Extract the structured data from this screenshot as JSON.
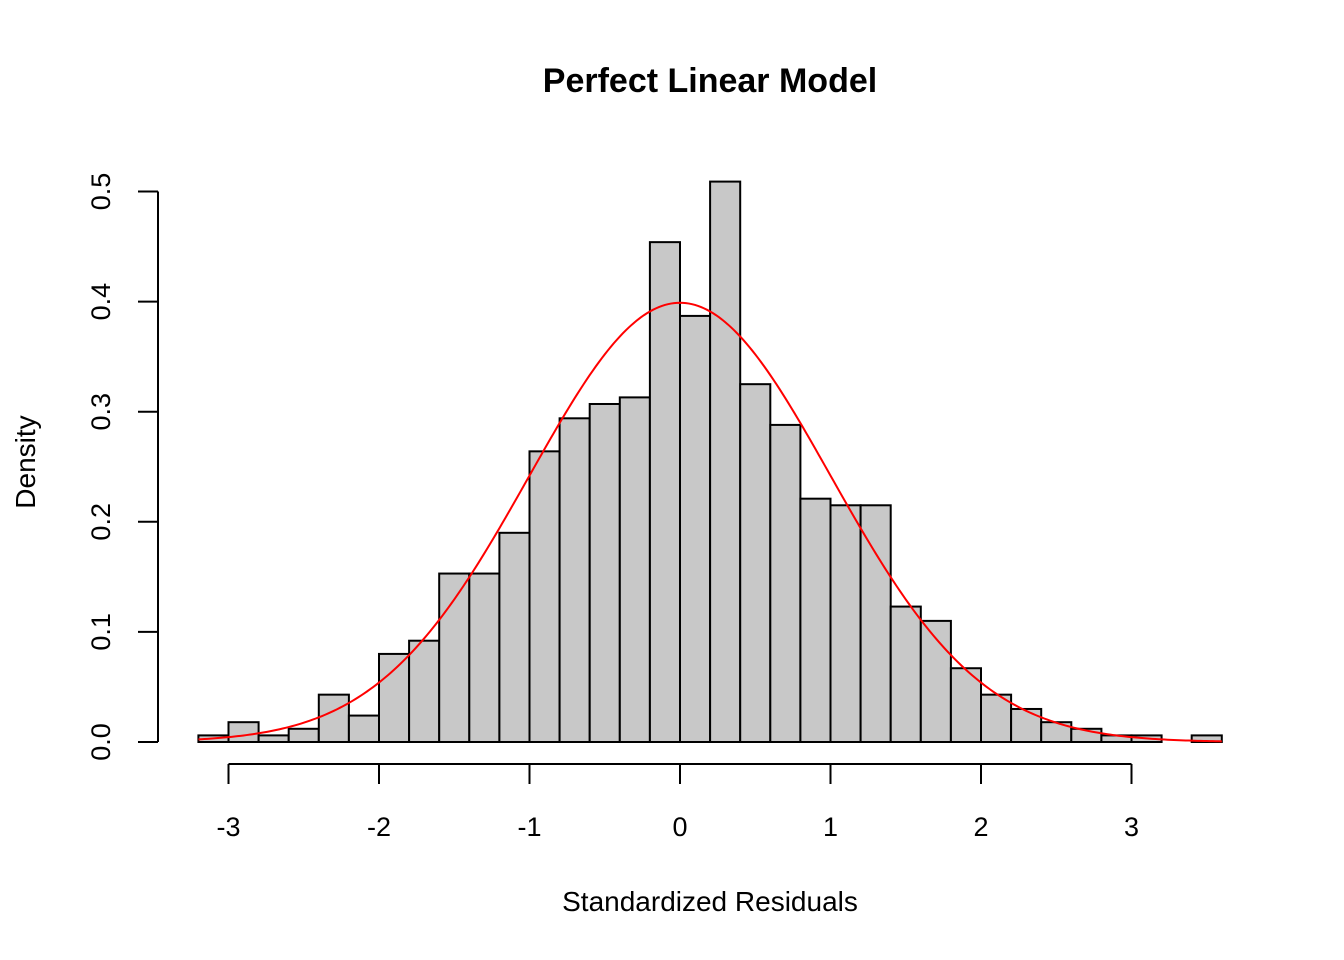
{
  "chart_data": {
    "type": "bar",
    "title": "Perfect Linear Model",
    "xlabel": "Standardized Residuals",
    "ylabel": "Density",
    "xlim": [
      -3.2,
      3.6
    ],
    "ylim": [
      0,
      0.5
    ],
    "bin_width": 0.2,
    "bin_start": -3.2,
    "values": [
      0.006,
      0.018,
      0.006,
      0.012,
      0.043,
      0.024,
      0.08,
      0.092,
      0.153,
      0.153,
      0.19,
      0.264,
      0.294,
      0.307,
      0.313,
      0.454,
      0.387,
      0.509,
      0.325,
      0.288,
      0.221,
      0.215,
      0.215,
      0.123,
      0.11,
      0.067,
      0.043,
      0.03,
      0.018,
      0.012,
      0.006,
      0.006,
      0.0,
      0.006
    ],
    "x_ticks": [
      "-3",
      "-2",
      "-1",
      "0",
      "1",
      "2",
      "3"
    ],
    "y_ticks": [
      "0.0",
      "0.1",
      "0.2",
      "0.3",
      "0.4",
      "0.5"
    ],
    "overlay": {
      "type": "line",
      "name": "normal density",
      "mean": 0,
      "sd": 1,
      "color": "#ff0000"
    },
    "bar_fill": "#c8c8c8",
    "bar_stroke": "#000000",
    "grid": false
  }
}
